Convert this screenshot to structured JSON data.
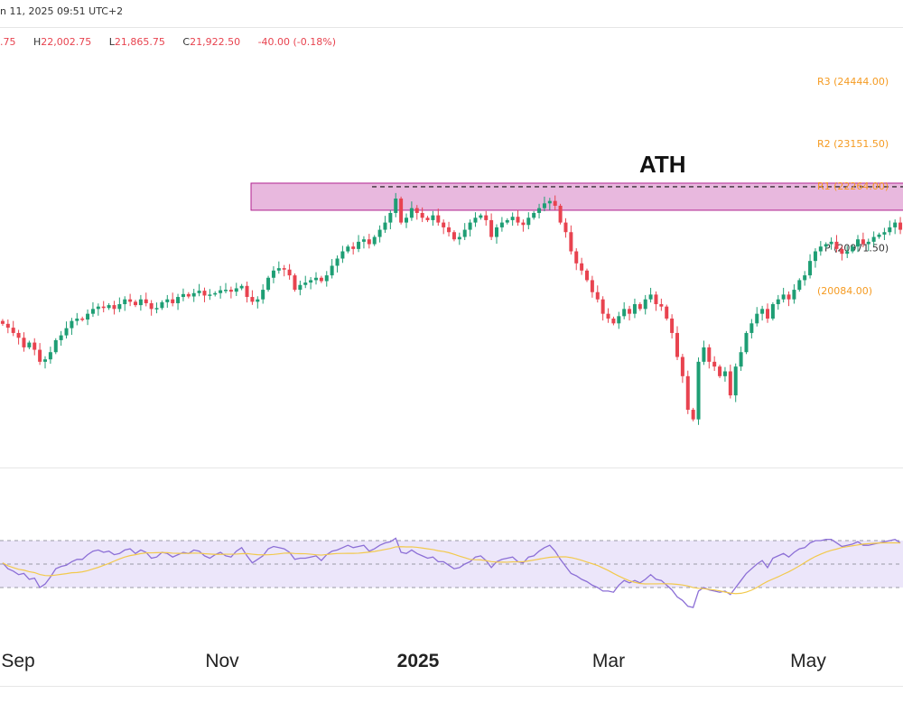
{
  "header": {
    "date_text": "n 11, 2025 09:51 UTC+2",
    "ohlc": {
      "o_label": "",
      "o_value": ".75",
      "h_label": "H",
      "h_value": "22,002.75",
      "l_label": "L",
      "l_value": "21,865.75",
      "c_label": "C",
      "c_value": "21,922.50",
      "change": "-40.00 (-0.18%)"
    }
  },
  "annotations": {
    "ath_label": "ATH",
    "zone_color": "#e8b8de",
    "zone_border": "#b0218f"
  },
  "pivots": [
    {
      "label": "R3 (24444.00)",
      "value": 24444.0
    },
    {
      "label": "R2 (23151.50)",
      "value": 23151.5
    },
    {
      "label": "R1 (22264.00)",
      "value": 22264.0
    },
    {
      "label": "P (20971.50)",
      "value": 20971.5
    },
    {
      "label": "(20084.00)",
      "value": 20084.0
    }
  ],
  "colors": {
    "up": "#1e9e74",
    "down": "#e8434f",
    "rsi": "#8c6fd6",
    "rsi_ma": "#f2c94c",
    "rsi_band": "#ece6fa",
    "pivot": "#f59b22"
  },
  "x_axis": [
    {
      "label": "Sep",
      "bold": false
    },
    {
      "label": "Nov",
      "bold": false
    },
    {
      "label": "2025",
      "bold": true
    },
    {
      "label": "Mar",
      "bold": false
    },
    {
      "label": "May",
      "bold": false
    }
  ],
  "chart_data": {
    "type": "candlestick",
    "title": "",
    "x_range": [
      "2024-08",
      "2025-06"
    ],
    "y_range": [
      16500,
      24700
    ],
    "ath_level": 22264,
    "series": [
      {
        "name": "price",
        "values": [
          19390,
          19310,
          19200,
          19100,
          18900,
          19000,
          18850,
          18600,
          18650,
          18800,
          19050,
          19150,
          19300,
          19450,
          19500,
          19480,
          19600,
          19700,
          19750,
          19720,
          19780,
          19700,
          19800,
          19900,
          19850,
          19780,
          19900,
          19820,
          19700,
          19720,
          19840,
          19900,
          19820,
          19950,
          20010,
          19960,
          20030,
          20080,
          19980,
          20000,
          20030,
          20090,
          20100,
          20060,
          20130,
          20180,
          19950,
          19850,
          19900,
          20100,
          20350,
          20500,
          20550,
          20520,
          20400,
          20100,
          20200,
          20250,
          20300,
          20350,
          20280,
          20400,
          20600,
          20750,
          20900,
          21000,
          20950,
          21100,
          21150,
          21050,
          21200,
          21350,
          21500,
          21700,
          22000,
          21500,
          21600,
          21800,
          21700,
          21600,
          21550,
          21650,
          21500,
          21400,
          21300,
          21150,
          21200,
          21350,
          21500,
          21600,
          21650,
          21550,
          21200,
          21400,
          21500,
          21550,
          21620,
          21500,
          21450,
          21600,
          21700,
          21800,
          21900,
          21950,
          21850,
          21500,
          21300,
          20900,
          20650,
          20500,
          20300,
          20050,
          19900,
          19600,
          19500,
          19400,
          19550,
          19700,
          19600,
          19800,
          19700,
          19900,
          20000,
          19800,
          19750,
          19500,
          19200,
          18700,
          18300,
          17600,
          17400,
          18600,
          18900,
          18600,
          18500,
          18300,
          18400,
          17900,
          18500,
          18800,
          19200,
          19400,
          19600,
          19700,
          19500,
          19800,
          19900,
          20000,
          19900,
          20100,
          20300,
          20400,
          20700,
          20900,
          21000,
          21050,
          21100,
          20950,
          20850,
          20900,
          21000,
          21150,
          21050,
          21100,
          21200,
          21250,
          21300,
          21400,
          21500,
          21350
        ]
      },
      {
        "name": "RSI",
        "values": [
          51,
          46,
          44,
          41,
          42,
          37,
          38,
          30,
          33,
          39,
          46,
          48,
          49,
          52,
          54,
          54,
          58,
          61,
          62,
          60,
          61,
          58,
          59,
          62,
          63,
          59,
          62,
          60,
          55,
          56,
          60,
          59,
          56,
          58,
          60,
          59,
          62,
          61,
          57,
          55,
          58,
          60,
          57,
          56,
          61,
          64,
          57,
          51,
          54,
          57,
          63,
          65,
          64,
          63,
          60,
          54,
          55,
          55,
          56,
          57,
          53,
          58,
          61,
          62,
          64,
          66,
          64,
          65,
          66,
          61,
          63,
          66,
          68,
          69,
          72,
          60,
          59,
          62,
          59,
          57,
          55,
          56,
          52,
          52,
          49,
          46,
          47,
          50,
          52,
          56,
          57,
          53,
          47,
          52,
          54,
          55,
          56,
          52,
          51,
          56,
          57,
          61,
          64,
          66,
          61,
          54,
          48,
          42,
          40,
          37,
          35,
          32,
          30,
          27,
          27,
          26,
          32,
          36,
          34,
          36,
          34,
          37,
          41,
          37,
          36,
          32,
          28,
          22,
          19,
          14,
          13,
          27,
          30,
          28,
          27,
          26,
          27,
          24,
          30,
          36,
          42,
          46,
          50,
          53,
          47,
          55,
          57,
          59,
          56,
          60,
          63,
          64,
          68,
          70,
          70,
          71,
          71,
          68,
          65,
          66,
          67,
          69,
          66,
          66,
          67,
          68,
          69,
          70,
          71,
          68
        ]
      }
    ]
  }
}
